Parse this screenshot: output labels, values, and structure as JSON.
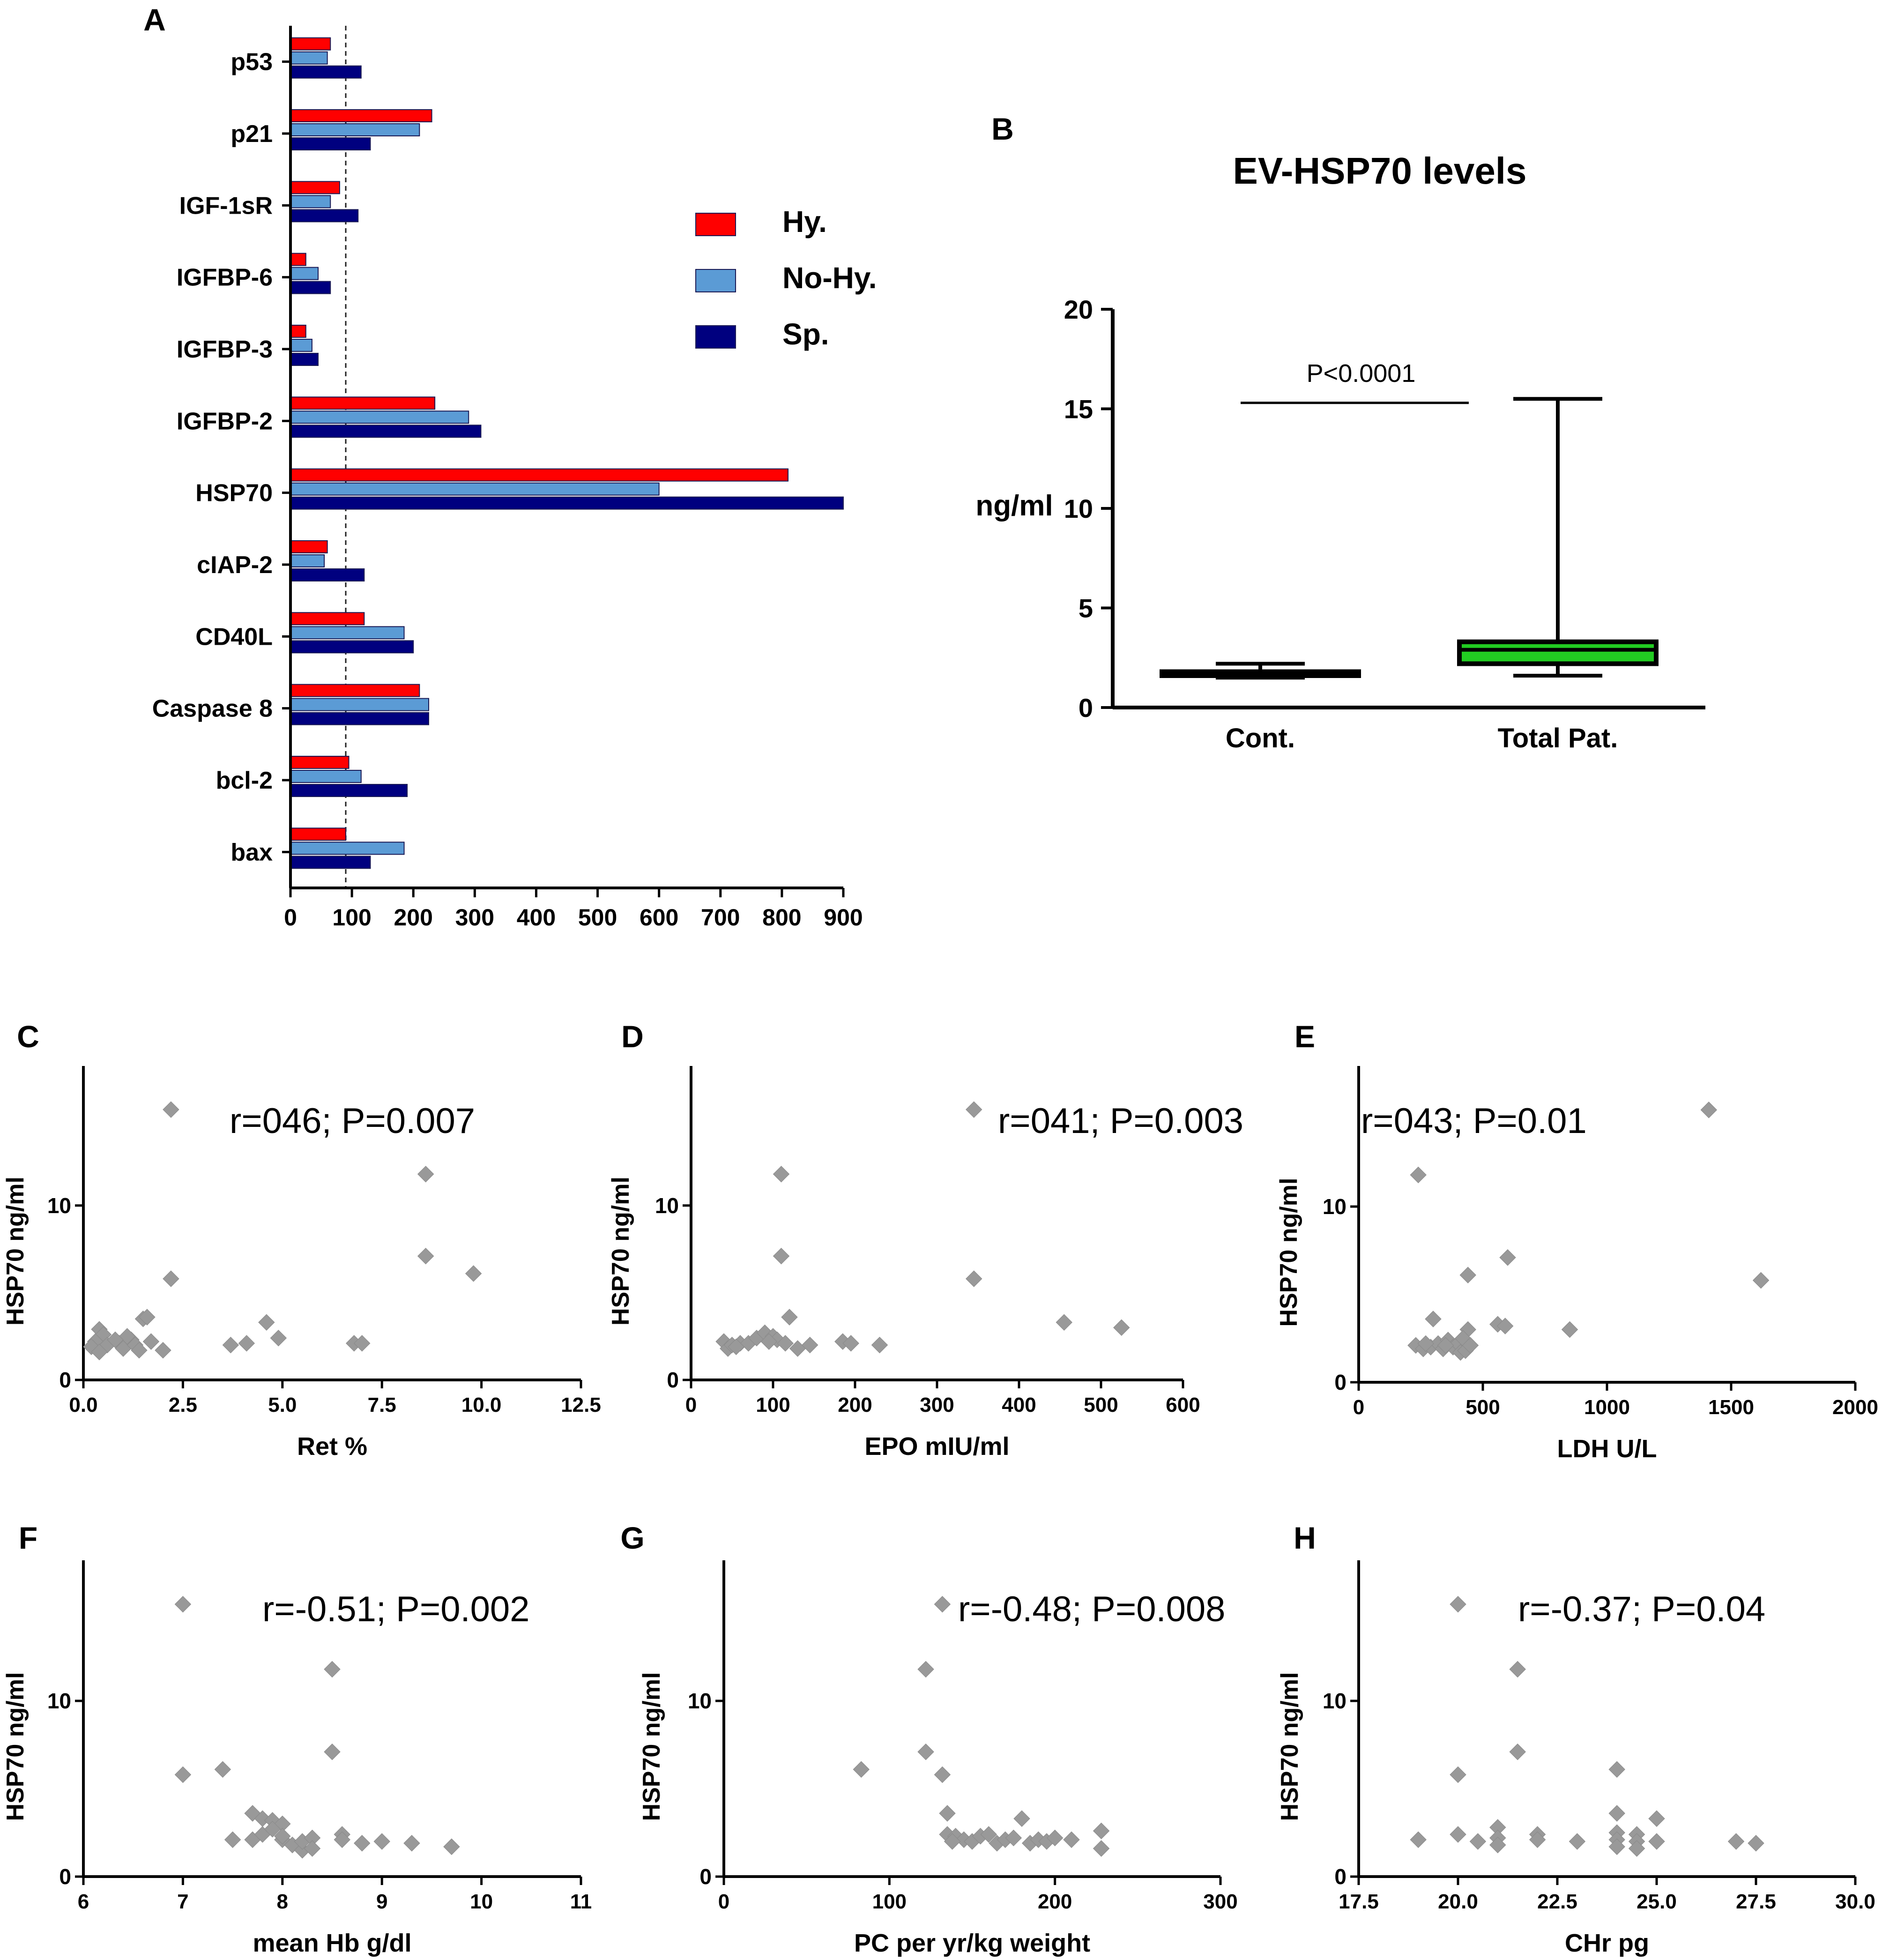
{
  "panels": {
    "A": {
      "letter": "A",
      "chart_data": {
        "type": "bar",
        "orientation": "horizontal",
        "categories": [
          "p53",
          "p21",
          "IGF-1sR",
          "IGFBP-6",
          "IGFBP-3",
          "IGFBP-2",
          "HSP70",
          "cIAP-2",
          "CD40L",
          "Caspase 8",
          "bcl-2",
          "bax"
        ],
        "series": [
          {
            "name": "Hy.",
            "color": "#ff0000",
            "values": [
              65,
              230,
              80,
              25,
              25,
              235,
              810,
              60,
              120,
              210,
              95,
              90
            ]
          },
          {
            "name": "No-Hy.",
            "color": "#5b9bd5",
            "values": [
              60,
              210,
              65,
              45,
              35,
              290,
              600,
              55,
              185,
              225,
              115,
              185
            ]
          },
          {
            "name": "Sp.",
            "color": "#00007f",
            "values": [
              115,
              130,
              110,
              65,
              45,
              310,
              900,
              120,
              200,
              225,
              190,
              130
            ]
          }
        ],
        "xlim": [
          0,
          900
        ],
        "x_ticks": [
          "0",
          "100",
          "200",
          "300",
          "400",
          "500",
          "600",
          "700",
          "800",
          "900"
        ],
        "reference_line": 90,
        "legend": [
          "Hy.",
          "No-Hy.",
          "Sp."
        ]
      }
    },
    "B": {
      "letter": "B",
      "chart_data": {
        "type": "box",
        "title": "EV-HSP70 levels",
        "ylabel": "ng/ml",
        "ylim": [
          0,
          20
        ],
        "y_ticks": [
          "0",
          "5",
          "10",
          "15",
          "20"
        ],
        "categories": [
          "Cont.",
          "Total Pat."
        ],
        "boxes": [
          {
            "label": "Cont.",
            "min": 1.5,
            "q1": 1.6,
            "median": 1.7,
            "q3": 1.8,
            "max": 2.2,
            "color": "#ffffff"
          },
          {
            "label": "Total Pat.",
            "min": 1.6,
            "q1": 2.2,
            "median": 2.9,
            "q3": 3.3,
            "max": 15.5,
            "color": "#22cc22"
          }
        ],
        "annotation": "P<0.0001",
        "annotation_line_y": 15.3
      }
    },
    "C": {
      "letter": "C",
      "chart_data": {
        "type": "scatter",
        "xlabel": "Ret %",
        "ylabel": "HSP70 ng/ml",
        "xlim": [
          0,
          12.5
        ],
        "ylim": [
          0,
          18
        ],
        "x_ticks": [
          "0.0",
          "2.5",
          "5.0",
          "7.5",
          "10.0",
          "12.5"
        ],
        "y_ticks": [
          "0",
          "10"
        ],
        "annotation": "r=046; P=0.007",
        "points": [
          [
            2.2,
            15.5
          ],
          [
            8.6,
            11.8
          ],
          [
            8.6,
            7.1
          ],
          [
            9.8,
            6.1
          ],
          [
            2.2,
            5.8
          ],
          [
            4.6,
            3.3
          ],
          [
            1.5,
            3.5
          ],
          [
            1.6,
            3.6
          ],
          [
            0.4,
            2.9
          ],
          [
            0.5,
            2.6
          ],
          [
            0.3,
            2.2
          ],
          [
            0.6,
            2.0
          ],
          [
            0.2,
            1.9
          ],
          [
            0.4,
            1.6
          ],
          [
            0.9,
            2.1
          ],
          [
            1.0,
            1.8
          ],
          [
            1.2,
            2.3
          ],
          [
            1.3,
            2.0
          ],
          [
            1.4,
            1.7
          ],
          [
            1.7,
            2.2
          ],
          [
            2.0,
            1.7
          ],
          [
            3.7,
            2.0
          ],
          [
            4.1,
            2.1
          ],
          [
            4.9,
            2.4
          ],
          [
            6.8,
            2.1
          ],
          [
            7.0,
            2.1
          ],
          [
            1.1,
            2.5
          ],
          [
            0.8,
            2.3
          ]
        ]
      }
    },
    "D": {
      "letter": "D",
      "chart_data": {
        "type": "scatter",
        "xlabel": "EPO mIU/ml",
        "ylabel": "HSP70 ng/ml",
        "xlim": [
          0,
          600
        ],
        "ylim": [
          0,
          18
        ],
        "x_ticks": [
          "0",
          "100",
          "200",
          "300",
          "400",
          "500",
          "600"
        ],
        "y_ticks": [
          "0",
          "10"
        ],
        "annotation": "r=041; P=0.003",
        "points": [
          [
            345,
            15.5
          ],
          [
            110,
            11.8
          ],
          [
            110,
            7.1
          ],
          [
            345,
            5.8
          ],
          [
            455,
            3.3
          ],
          [
            525,
            3.0
          ],
          [
            120,
            3.6
          ],
          [
            40,
            2.2
          ],
          [
            45,
            1.8
          ],
          [
            50,
            2.0
          ],
          [
            60,
            2.1
          ],
          [
            70,
            2.1
          ],
          [
            80,
            2.4
          ],
          [
            90,
            2.7
          ],
          [
            100,
            2.5
          ],
          [
            105,
            2.3
          ],
          [
            115,
            2.1
          ],
          [
            130,
            1.8
          ],
          [
            145,
            2.0
          ],
          [
            185,
            2.2
          ],
          [
            195,
            2.1
          ],
          [
            230,
            2.0
          ],
          [
            55,
            1.9
          ],
          [
            95,
            2.2
          ]
        ]
      }
    },
    "E": {
      "letter": "E",
      "chart_data": {
        "type": "scatter",
        "xlabel": "LDH U/L",
        "ylabel": "HSP70 ng/ml",
        "xlim": [
          0,
          2000
        ],
        "ylim": [
          0,
          18
        ],
        "x_ticks": [
          "0",
          "500",
          "1000",
          "1500",
          "2000"
        ],
        "y_ticks": [
          "0",
          "10"
        ],
        "annotation": "r=043; P=0.01",
        "points": [
          [
            1410,
            15.5
          ],
          [
            240,
            11.8
          ],
          [
            600,
            7.1
          ],
          [
            1620,
            5.8
          ],
          [
            440,
            6.1
          ],
          [
            560,
            3.3
          ],
          [
            590,
            3.2
          ],
          [
            850,
            3.0
          ],
          [
            300,
            3.6
          ],
          [
            440,
            3.0
          ],
          [
            230,
            2.1
          ],
          [
            260,
            1.9
          ],
          [
            290,
            2.0
          ],
          [
            320,
            2.2
          ],
          [
            340,
            1.9
          ],
          [
            360,
            2.4
          ],
          [
            380,
            2.0
          ],
          [
            400,
            2.2
          ],
          [
            410,
            1.7
          ],
          [
            420,
            2.5
          ],
          [
            430,
            1.8
          ],
          [
            450,
            2.1
          ],
          [
            270,
            2.2
          ],
          [
            350,
            2.1
          ]
        ]
      }
    },
    "F": {
      "letter": "F",
      "chart_data": {
        "type": "scatter",
        "xlabel": "mean Hb g/dl",
        "ylabel": "HSP70 ng/ml",
        "xlim": [
          6,
          11
        ],
        "ylim": [
          0,
          18
        ],
        "x_ticks": [
          "6",
          "7",
          "8",
          "9",
          "10",
          "11"
        ],
        "y_ticks": [
          "0",
          "10"
        ],
        "annotation": "r=-0.51; P=0.002",
        "points": [
          [
            7.0,
            15.5
          ],
          [
            8.5,
            11.8
          ],
          [
            8.5,
            7.1
          ],
          [
            7.0,
            5.8
          ],
          [
            7.4,
            6.1
          ],
          [
            7.7,
            3.6
          ],
          [
            7.8,
            3.3
          ],
          [
            7.9,
            3.2
          ],
          [
            8.0,
            3.0
          ],
          [
            7.5,
            2.1
          ],
          [
            7.7,
            2.1
          ],
          [
            7.8,
            2.4
          ],
          [
            7.9,
            2.7
          ],
          [
            8.0,
            2.1
          ],
          [
            8.0,
            2.3
          ],
          [
            8.1,
            1.8
          ],
          [
            8.2,
            1.5
          ],
          [
            8.2,
            2.0
          ],
          [
            8.3,
            2.2
          ],
          [
            8.3,
            1.6
          ],
          [
            8.6,
            2.4
          ],
          [
            8.6,
            2.1
          ],
          [
            8.8,
            1.9
          ],
          [
            9.0,
            2.0
          ],
          [
            9.3,
            1.9
          ],
          [
            9.7,
            1.7
          ]
        ]
      }
    },
    "G": {
      "letter": "G",
      "chart_data": {
        "type": "scatter",
        "xlabel": "PC per yr/kg weight",
        "ylabel": "HSP70 ng/ml",
        "xlim": [
          0,
          300
        ],
        "ylim": [
          0,
          18
        ],
        "x_ticks": [
          "0",
          "100",
          "200",
          "300"
        ],
        "y_ticks": [
          "0",
          "10"
        ],
        "annotation": "r=-0.48; P=0.008",
        "points": [
          [
            132,
            15.5
          ],
          [
            122,
            11.8
          ],
          [
            122,
            7.1
          ],
          [
            83,
            6.1
          ],
          [
            132,
            5.8
          ],
          [
            135,
            3.6
          ],
          [
            180,
            3.3
          ],
          [
            228,
            2.6
          ],
          [
            135,
            2.4
          ],
          [
            140,
            2.3
          ],
          [
            145,
            2.1
          ],
          [
            150,
            2.0
          ],
          [
            155,
            2.3
          ],
          [
            165,
            1.9
          ],
          [
            170,
            2.1
          ],
          [
            175,
            2.2
          ],
          [
            185,
            1.9
          ],
          [
            190,
            2.1
          ],
          [
            195,
            2.0
          ],
          [
            200,
            2.2
          ],
          [
            210,
            2.1
          ],
          [
            228,
            1.6
          ],
          [
            160,
            2.4
          ],
          [
            138,
            2.0
          ]
        ]
      }
    },
    "H": {
      "letter": "H",
      "chart_data": {
        "type": "scatter",
        "xlabel": "CHr pg",
        "ylabel": "HSP70 ng/ml",
        "xlim": [
          17.5,
          30
        ],
        "ylim": [
          0,
          18
        ],
        "x_ticks": [
          "17.5",
          "20.0",
          "22.5",
          "25.0",
          "27.5",
          "30.0"
        ],
        "y_ticks": [
          "0",
          "10"
        ],
        "annotation": "r=-0.37; P=0.04",
        "points": [
          [
            20.0,
            15.5
          ],
          [
            21.5,
            11.8
          ],
          [
            21.5,
            7.1
          ],
          [
            20.0,
            5.8
          ],
          [
            24.0,
            6.1
          ],
          [
            24.0,
            3.6
          ],
          [
            25.0,
            3.3
          ],
          [
            19.0,
            2.1
          ],
          [
            20.0,
            2.4
          ],
          [
            20.5,
            2.0
          ],
          [
            21.0,
            2.8
          ],
          [
            21.0,
            2.2
          ],
          [
            21.0,
            1.8
          ],
          [
            22.0,
            2.4
          ],
          [
            22.0,
            2.1
          ],
          [
            23.0,
            2.0
          ],
          [
            24.0,
            2.5
          ],
          [
            24.0,
            2.1
          ],
          [
            24.0,
            1.7
          ],
          [
            24.5,
            2.4
          ],
          [
            24.5,
            2.0
          ],
          [
            24.5,
            1.6
          ],
          [
            25.0,
            2.0
          ],
          [
            27.0,
            2.0
          ],
          [
            27.5,
            1.9
          ]
        ]
      }
    }
  }
}
